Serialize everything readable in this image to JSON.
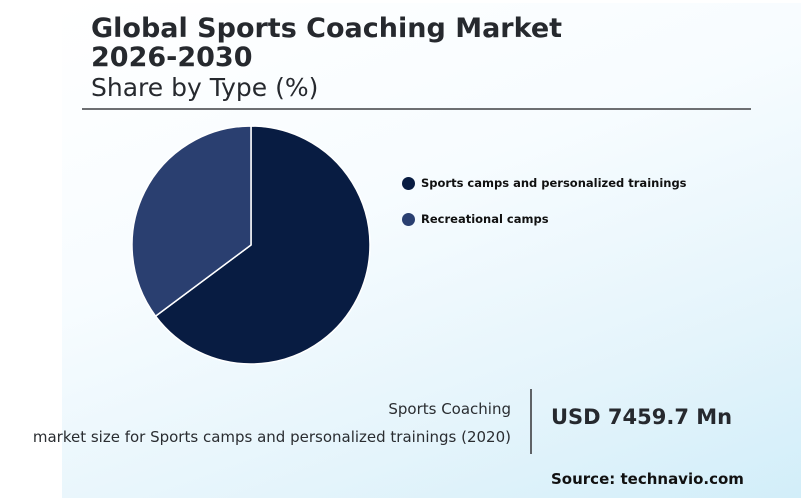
{
  "header": {
    "title": "Global Sports Coaching Market 2026-2030",
    "subtitle": "Share by Type (%)"
  },
  "chart_data": {
    "type": "pie",
    "categories": [
      "Sports camps and personalized trainings",
      "Recreational camps"
    ],
    "values": [
      64.8,
      35.2
    ],
    "colors": [
      "#081c42",
      "#2a3f70"
    ],
    "legend_placement": "right"
  },
  "footer": {
    "category": "Sports Coaching",
    "description": "market size for Sports camps and personalized trainings (2020)",
    "value": "USD 7459.7 Mn",
    "source": "Source: technavio.com"
  }
}
